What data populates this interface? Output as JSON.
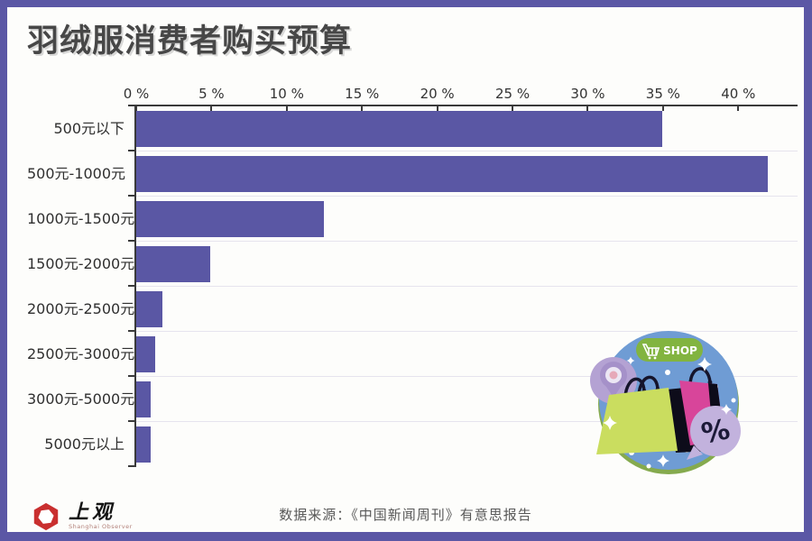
{
  "page": {
    "title": "羽绒服消费者购买预算",
    "border_color": "#5b57a5",
    "background": "#fdfdfb"
  },
  "chart_data": {
    "type": "bar",
    "orientation": "horizontal",
    "title": "羽绒服消费者购买预算",
    "categories": [
      "500元以下",
      "500元-1000元",
      "1000元-1500元",
      "1500元-2000元",
      "2000元-2500元",
      "2500元-3000元",
      "3000元-5000元",
      "5000元以上"
    ],
    "values": [
      35,
      42,
      12.5,
      5,
      1.8,
      1.3,
      1,
      1
    ],
    "unit": "%",
    "xlabel": "",
    "ylabel": "",
    "xlim": [
      0,
      44
    ],
    "x_ticks": [
      "0 %",
      "5 %",
      "10 %",
      "15 %",
      "20 %",
      "25 %",
      "30 %",
      "35 %",
      "40 %"
    ],
    "x_tick_values": [
      0,
      5,
      10,
      15,
      20,
      25,
      30,
      35,
      40
    ],
    "bar_color": "#5a57a4",
    "grid": "row-separator-lines",
    "legend": "none"
  },
  "illustration": {
    "shop_label": "SHOP",
    "percent_label": "%"
  },
  "footer": {
    "logo_title": "上观",
    "logo_subtitle": "Shanghai Observer",
    "source": "数据来源：《中国新闻周刊》有意思报告"
  }
}
